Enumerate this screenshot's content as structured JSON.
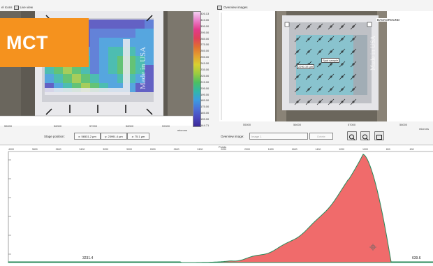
{
  "tabs": {
    "left_prefix": "el Icons",
    "live_view": "Live view",
    "overview": "Overview images"
  },
  "logo_text": "MCT",
  "left_view": {
    "x_ticks": [
      "55000",
      "56000",
      "57000",
      "58000",
      "59000"
    ],
    "x_unit": "microns",
    "stage_label": "Stage position:",
    "stage_x": "x: 56531.2 µm",
    "stage_y": "y: 23991.4 µm",
    "stage_z": "z: 75.1 µm",
    "watermark": "Made in USA"
  },
  "colorbar": {
    "labels": [
      "326.13",
      "315.00",
      "305.00",
      "295.00",
      "285.00",
      "275.00",
      "265.00",
      "255.00",
      "245.00",
      "235.00",
      "225.00",
      "215.00",
      "205.00",
      "195.00",
      "185.00",
      "175.00",
      "165.00",
      "155.00",
      "144.71"
    ]
  },
  "right_view": {
    "background_label": "BACKGROUND",
    "spot_label": "Spot sample",
    "dim_label": "2290.33 µm",
    "x_ticks": [
      "55000",
      "56000",
      "57000",
      "58000"
    ],
    "x_unit": "microns",
    "overview_label": "Overview image:",
    "overview_value": "Image 1",
    "delete_label": "Delete"
  },
  "spectrum": {
    "x_title": "Points",
    "top_ticks": [
      "4000",
      "3800",
      "3600",
      "3400",
      "3200",
      "3000",
      "2800",
      "2600",
      "2400",
      "2200",
      "2000",
      "1800",
      "1600",
      "1400",
      "1200",
      "1000",
      "800",
      "600"
    ],
    "left_value": "3231.4",
    "right_value": "639.6",
    "fill_color": "#f06b6b",
    "edge_color": "#2a8a5a"
  }
}
